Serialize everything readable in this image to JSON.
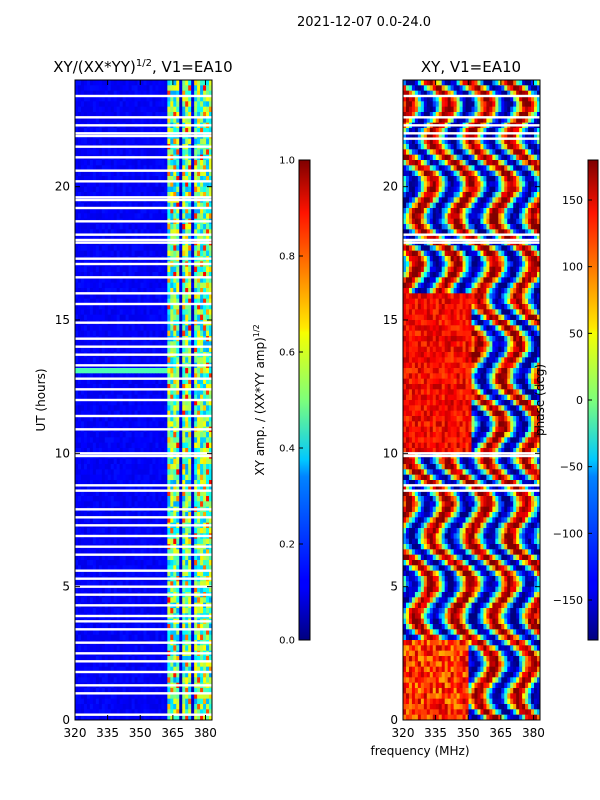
{
  "suptitle": "2021-12-07 0.0-24.0",
  "shared_xlabel": "frequency (MHz)",
  "chart_data": [
    {
      "type": "heatmap",
      "id": "amp",
      "title_main": "XY/(XX*YY)",
      "title_sup": "1/2",
      "title_rest": ", V1=EA10",
      "ylabel": "UT (hours)",
      "xlim": [
        320,
        383
      ],
      "ylim": [
        0,
        24
      ],
      "xticks": [
        "320",
        "335",
        "350",
        "365",
        "380"
      ],
      "yticks": [
        "0",
        "5",
        "10",
        "15",
        "20"
      ],
      "colorbar": {
        "label_main": "XY amp. / (XX*YY amp)",
        "label_sup": "1/2",
        "range": [
          0.0,
          1.0
        ],
        "ticks": [
          "0.0",
          "0.2",
          "0.4",
          "0.6",
          "0.8",
          "1.0"
        ]
      },
      "flagged_hours": [
        0.2,
        1.0,
        1.3,
        1.8,
        2.2,
        2.5,
        2.9,
        3.4,
        3.7,
        3.9,
        4.3,
        4.7,
        5.0,
        5.3,
        5.6,
        6.2,
        6.5,
        6.9,
        7.3,
        7.6,
        7.9,
        8.6,
        8.8,
        9.9,
        10.0,
        10.9,
        11.4,
        12.0,
        12.4,
        12.8,
        13.3,
        13.7,
        14.0,
        14.3,
        14.9,
        15.6,
        16.0,
        16.6,
        17.1,
        17.3,
        17.9,
        18.0,
        18.2,
        18.7,
        19.2,
        19.5,
        19.6,
        20.2,
        20.6,
        21.1,
        21.5,
        21.9,
        22.0,
        22.3,
        22.6,
        23.4
      ]
    },
    {
      "type": "heatmap",
      "id": "phase",
      "title_main": "XY, V1=EA10",
      "xlim": [
        320,
        383
      ],
      "ylim": [
        0,
        24
      ],
      "xticks": [
        "320",
        "335",
        "350",
        "365",
        "380"
      ],
      "yticks": [
        "0",
        "5",
        "10",
        "15",
        "20"
      ],
      "colorbar": {
        "label_main": "phase (deg)",
        "range": [
          -180,
          180
        ],
        "ticks": [
          "−150",
          "−100",
          "−50",
          "0",
          "50",
          "100",
          "150"
        ],
        "tick_values": [
          -150,
          -100,
          -50,
          0,
          50,
          100,
          150
        ]
      },
      "flagged_hours": [
        8.6,
        8.8,
        9.9,
        10.0,
        17.9,
        18.0,
        18.2,
        21.8,
        22.0,
        22.3,
        22.6,
        23.4
      ]
    }
  ]
}
